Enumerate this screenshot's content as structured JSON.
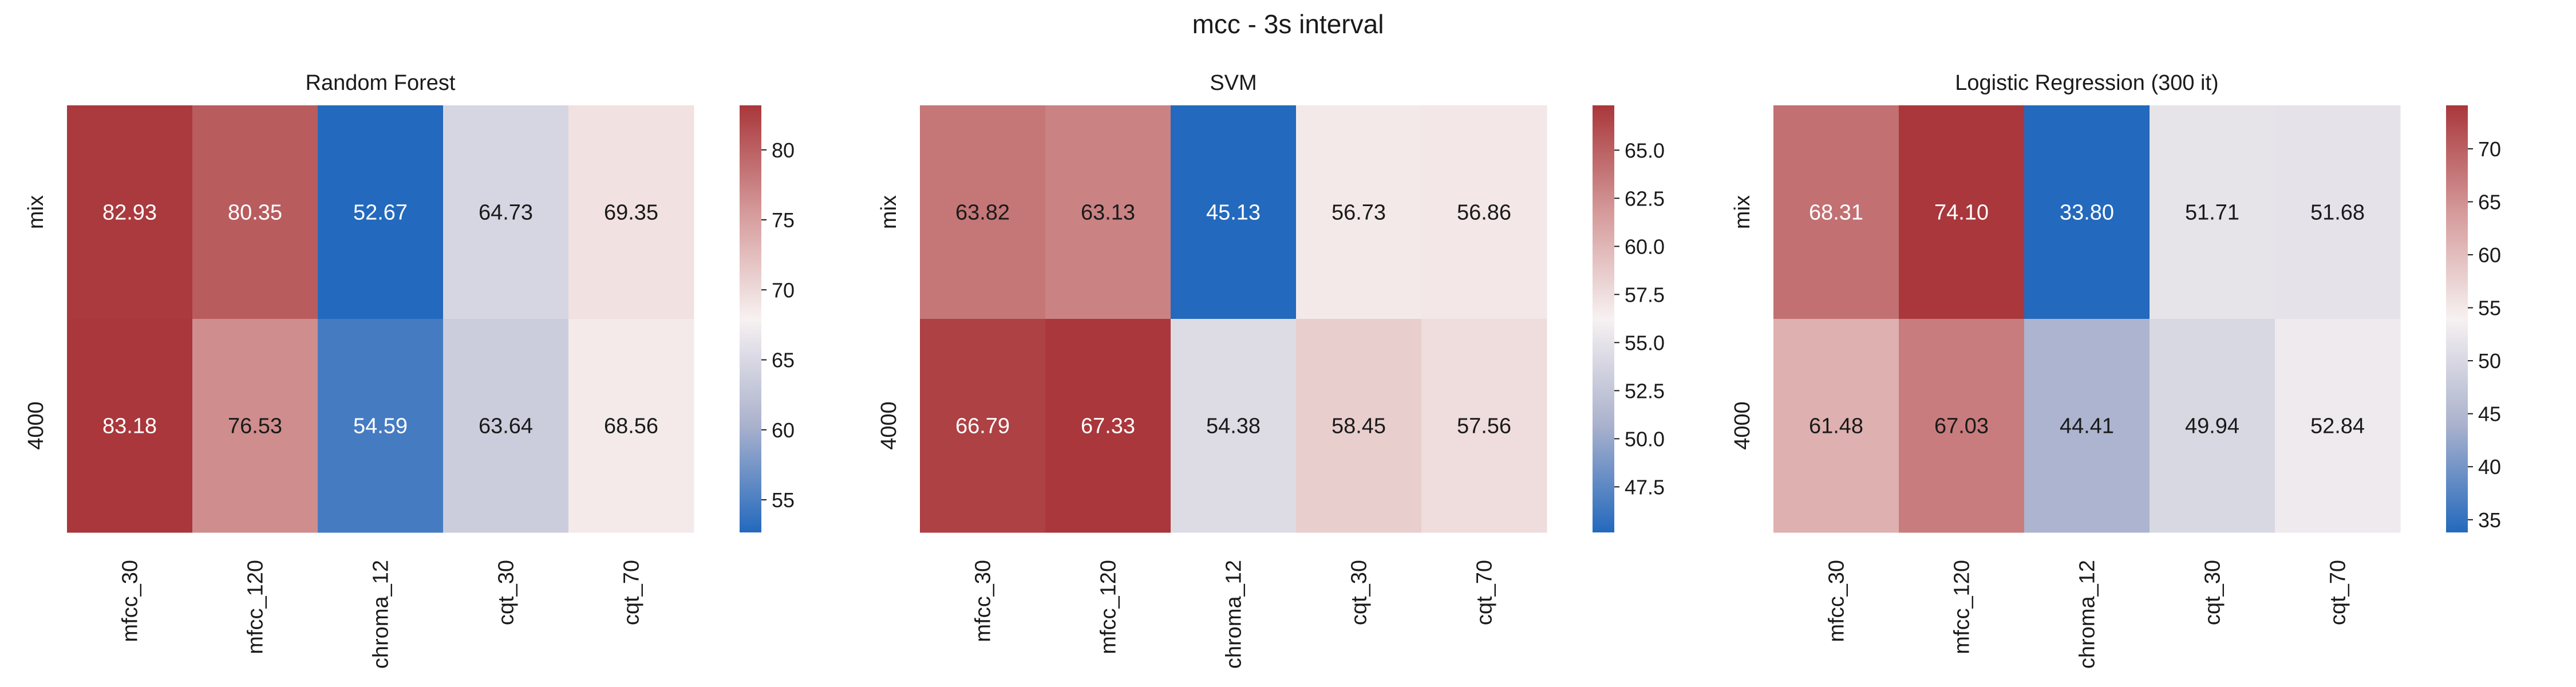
{
  "figure": {
    "title": "mcc - 3s interval"
  },
  "chart_data": [
    {
      "type": "heatmap",
      "title": "Random Forest",
      "rows": [
        "mix",
        "4000"
      ],
      "columns": [
        "mfcc_30",
        "mfcc_120",
        "chroma_12",
        "cqt_30",
        "cqt_70"
      ],
      "values": [
        [
          82.93,
          80.35,
          52.67,
          64.73,
          69.35
        ],
        [
          83.18,
          76.53,
          54.59,
          63.64,
          68.56
        ]
      ],
      "value_labels": [
        [
          "82.93",
          "80.35",
          "52.67",
          "64.73",
          "69.35"
        ],
        [
          "83.18",
          "76.53",
          "54.59",
          "63.64",
          "68.56"
        ]
      ],
      "colorbar": {
        "min": 52.67,
        "max": 83.18,
        "ticks": [
          55,
          60,
          65,
          70,
          75,
          80
        ]
      }
    },
    {
      "type": "heatmap",
      "title": "SVM",
      "rows": [
        "mix",
        "4000"
      ],
      "columns": [
        "mfcc_30",
        "mfcc_120",
        "chroma_12",
        "cqt_30",
        "cqt_70"
      ],
      "values": [
        [
          63.82,
          63.13,
          45.13,
          56.73,
          56.86
        ],
        [
          66.79,
          67.33,
          54.38,
          58.45,
          57.56
        ]
      ],
      "value_labels": [
        [
          "63.82",
          "63.13",
          "45.13",
          "56.73",
          "56.86"
        ],
        [
          "66.79",
          "67.33",
          "54.38",
          "58.45",
          "57.56"
        ]
      ],
      "colorbar": {
        "min": 45.13,
        "max": 67.33,
        "ticks": [
          "47.5",
          "50.0",
          "52.5",
          "55.0",
          "57.5",
          "60.0",
          "62.5",
          "65.0"
        ]
      }
    },
    {
      "type": "heatmap",
      "title": "Logistic Regression (300 it)",
      "rows": [
        "mix",
        "4000"
      ],
      "columns": [
        "mfcc_30",
        "mfcc_120",
        "chroma_12",
        "cqt_30",
        "cqt_70"
      ],
      "values": [
        [
          68.31,
          74.1,
          33.8,
          51.71,
          51.68
        ],
        [
          61.48,
          67.03,
          44.41,
          49.94,
          52.84
        ]
      ],
      "value_labels": [
        [
          "68.31",
          "74.10",
          "33.80",
          "51.71",
          "51.68"
        ],
        [
          "61.48",
          "67.03",
          "44.41",
          "49.94",
          "52.84"
        ]
      ],
      "colorbar": {
        "min": 33.8,
        "max": 74.1,
        "ticks": [
          35,
          40,
          45,
          50,
          55,
          60,
          65,
          70
        ]
      }
    }
  ],
  "colormap": {
    "name": "vlag",
    "stops": [
      "#2369bd",
      "#a9b1cd",
      "#f7f1f1",
      "#d59a9a",
      "#a9373b"
    ]
  }
}
